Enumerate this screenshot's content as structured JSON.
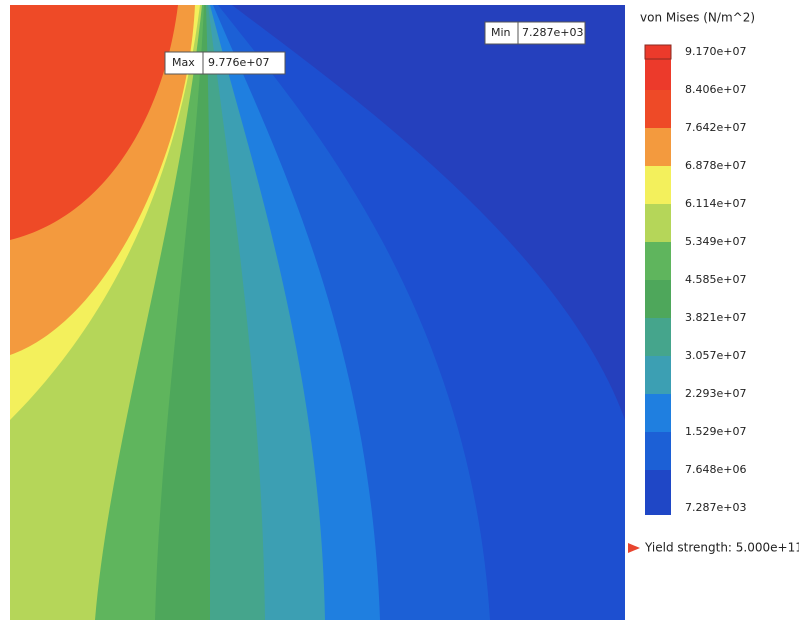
{
  "legend": {
    "title": "von Mises (N/m^2)",
    "labels": [
      "9.170e+07",
      "8.406e+07",
      "7.642e+07",
      "6.878e+07",
      "6.114e+07",
      "5.349e+07",
      "4.585e+07",
      "3.821e+07",
      "3.057e+07",
      "2.293e+07",
      "1.529e+07",
      "7.648e+06",
      "7.287e+03"
    ],
    "colors": [
      "#ec3a2b",
      "#ee4a27",
      "#f39a3e",
      "#f3f05c",
      "#b5d659",
      "#5fb55d",
      "#4ea75b",
      "#45a58c",
      "#3c9fb3",
      "#1f7fe0",
      "#1c60d6",
      "#1f47c6"
    ]
  },
  "max": {
    "label": "Max",
    "value": "9.776e+07"
  },
  "min": {
    "label": "Min",
    "value": "7.287e+03"
  },
  "yield": {
    "text": "Yield strength: 5.000e+11"
  }
}
